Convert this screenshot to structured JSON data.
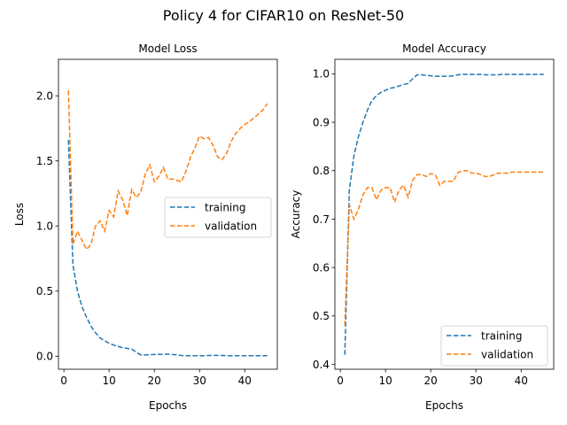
{
  "figure": {
    "suptitle": "Policy 4 for CIFAR10 on ResNet-50"
  },
  "colors": {
    "training": "#1f77b4",
    "validation": "#ff7f0e"
  },
  "chart_data": [
    {
      "type": "line",
      "title": "Model Loss",
      "xlabel": "Epochs",
      "ylabel": "Loss",
      "xlim": [
        -1.2,
        47.2
      ],
      "ylim": [
        -0.1,
        2.28
      ],
      "xticks": [
        0,
        10,
        20,
        30,
        40
      ],
      "yticks": [
        0.0,
        0.5,
        1.0,
        1.5,
        2.0
      ],
      "ytick_labels": [
        "0.0",
        "0.5",
        "1.0",
        "1.5",
        "2.0"
      ],
      "legend_loc": "center right",
      "x": [
        1,
        2,
        3,
        4,
        5,
        6,
        7,
        8,
        9,
        10,
        11,
        12,
        13,
        14,
        15,
        16,
        17,
        18,
        19,
        20,
        21,
        22,
        23,
        24,
        25,
        26,
        27,
        28,
        29,
        30,
        31,
        32,
        33,
        34,
        35,
        36,
        37,
        38,
        39,
        40,
        41,
        42,
        43,
        44,
        45
      ],
      "series": [
        {
          "name": "training",
          "style": "dashed",
          "values": [
            1.66,
            0.7,
            0.5,
            0.38,
            0.3,
            0.23,
            0.18,
            0.14,
            0.12,
            0.1,
            0.085,
            0.075,
            0.065,
            0.06,
            0.055,
            0.03,
            0.01,
            0.01,
            0.012,
            0.013,
            0.014,
            0.015,
            0.016,
            0.013,
            0.01,
            0.005,
            0.004,
            0.004,
            0.004,
            0.004,
            0.004,
            0.005,
            0.006,
            0.006,
            0.005,
            0.004,
            0.004,
            0.004,
            0.004,
            0.004,
            0.004,
            0.004,
            0.004,
            0.004,
            0.004
          ]
        },
        {
          "name": "validation",
          "style": "dashed",
          "values": [
            2.04,
            0.86,
            0.96,
            0.89,
            0.82,
            0.86,
            1.0,
            1.04,
            0.96,
            1.12,
            1.07,
            1.27,
            1.2,
            1.08,
            1.28,
            1.22,
            1.26,
            1.4,
            1.47,
            1.34,
            1.38,
            1.45,
            1.36,
            1.36,
            1.35,
            1.34,
            1.42,
            1.53,
            1.6,
            1.69,
            1.67,
            1.68,
            1.62,
            1.53,
            1.51,
            1.56,
            1.65,
            1.71,
            1.75,
            1.78,
            1.8,
            1.83,
            1.86,
            1.89,
            1.94
          ]
        }
      ]
    },
    {
      "type": "line",
      "title": "Model Accuracy",
      "xlabel": "Epochs",
      "ylabel": "Accuracy",
      "xlim": [
        -1.2,
        47.2
      ],
      "ylim": [
        0.39,
        1.03
      ],
      "xticks": [
        0,
        10,
        20,
        30,
        40
      ],
      "yticks": [
        0.4,
        0.5,
        0.6,
        0.7,
        0.8,
        0.9,
        1.0
      ],
      "ytick_labels": [
        "0.4",
        "0.5",
        "0.6",
        "0.7",
        "0.8",
        "0.9",
        "1.0"
      ],
      "legend_loc": "lower right",
      "x": [
        1,
        2,
        3,
        4,
        5,
        6,
        7,
        8,
        9,
        10,
        11,
        12,
        13,
        14,
        15,
        16,
        17,
        18,
        19,
        20,
        21,
        22,
        23,
        24,
        25,
        26,
        27,
        28,
        29,
        30,
        31,
        32,
        33,
        34,
        35,
        36,
        37,
        38,
        39,
        40,
        41,
        42,
        43,
        44,
        45
      ],
      "series": [
        {
          "name": "training",
          "style": "dashed",
          "values": [
            0.42,
            0.76,
            0.83,
            0.87,
            0.9,
            0.925,
            0.945,
            0.955,
            0.962,
            0.966,
            0.97,
            0.972,
            0.975,
            0.978,
            0.98,
            0.99,
            0.998,
            0.998,
            0.997,
            0.996,
            0.995,
            0.995,
            0.995,
            0.995,
            0.996,
            0.998,
            0.999,
            0.999,
            0.999,
            0.999,
            0.999,
            0.998,
            0.998,
            0.998,
            0.998,
            0.999,
            0.999,
            0.999,
            0.999,
            0.999,
            0.999,
            0.999,
            0.999,
            0.999,
            0.999
          ]
        },
        {
          "name": "validation",
          "style": "dashed",
          "values": [
            0.48,
            0.73,
            0.7,
            0.72,
            0.75,
            0.765,
            0.765,
            0.74,
            0.76,
            0.765,
            0.765,
            0.735,
            0.76,
            0.77,
            0.745,
            0.78,
            0.792,
            0.792,
            0.788,
            0.794,
            0.792,
            0.77,
            0.778,
            0.778,
            0.778,
            0.796,
            0.8,
            0.8,
            0.795,
            0.795,
            0.792,
            0.788,
            0.788,
            0.792,
            0.795,
            0.795,
            0.795,
            0.797,
            0.797,
            0.797,
            0.797,
            0.797,
            0.797,
            0.797,
            0.797
          ]
        }
      ]
    }
  ]
}
